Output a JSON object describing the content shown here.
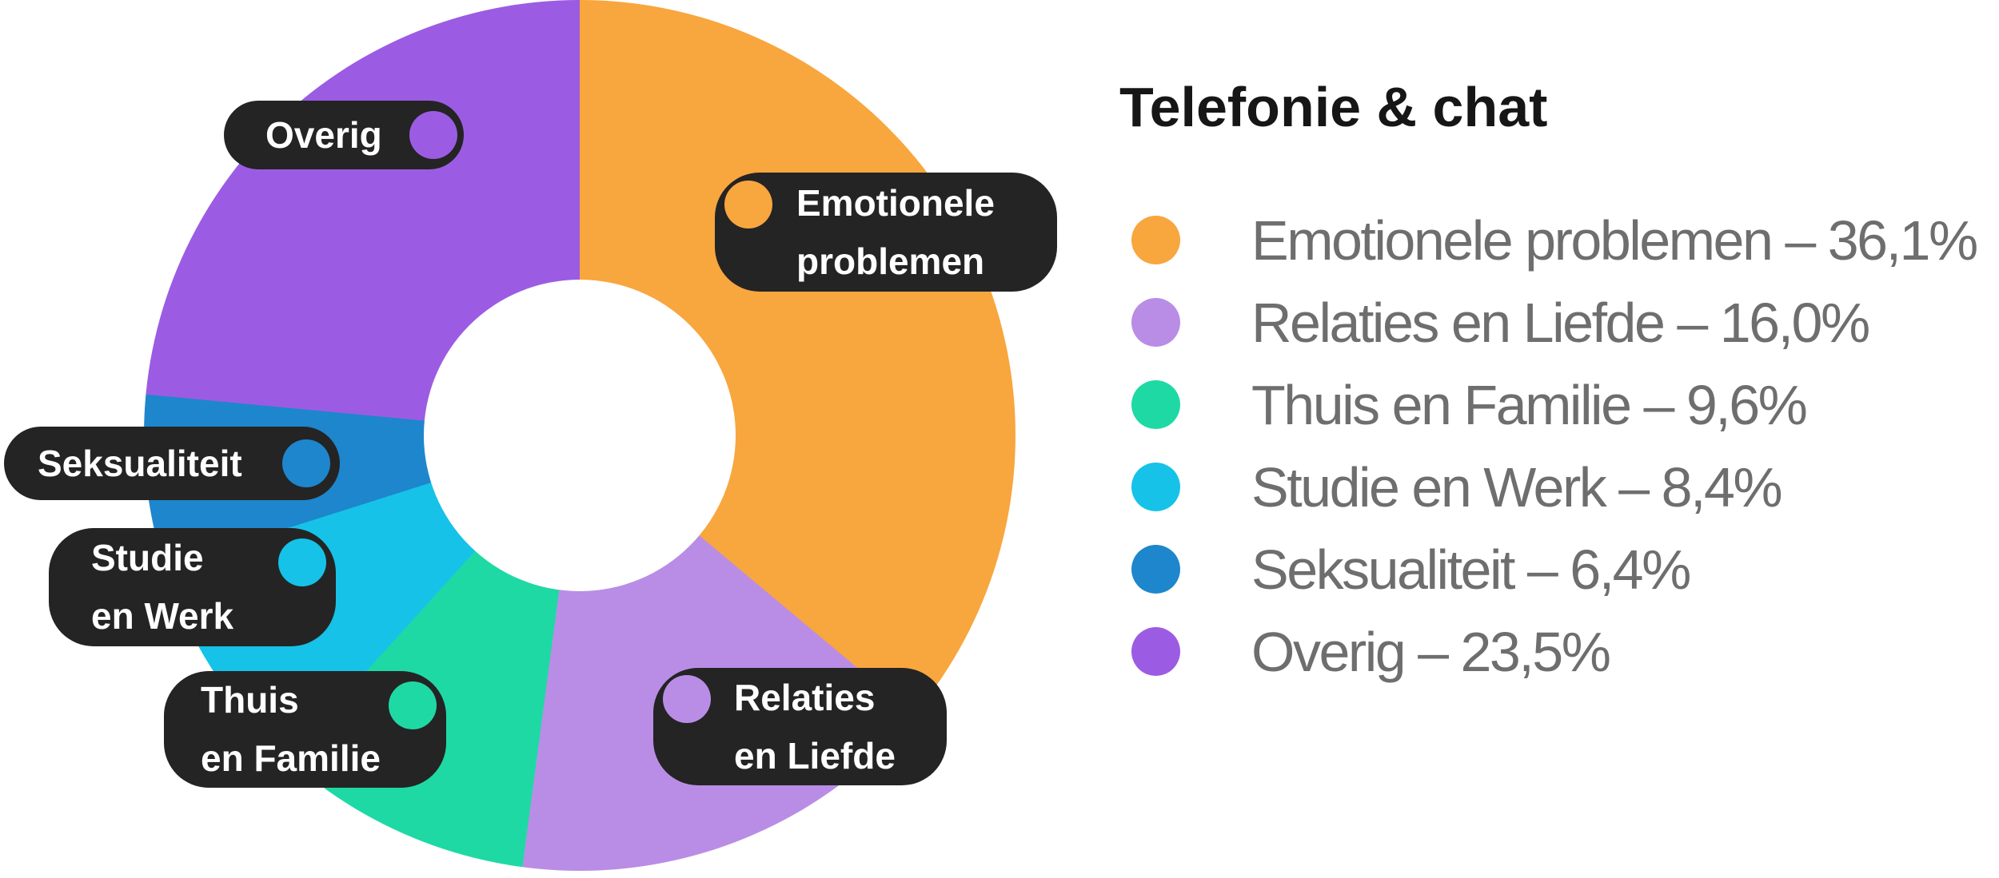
{
  "title": "Telefonie & chat",
  "colors": {
    "orange": "#F8A63E",
    "light_purple": "#B98DE6",
    "green": "#1FD9A4",
    "cyan": "#16C2E7",
    "blue": "#1E86CC",
    "purple": "#9B5CE3",
    "pill_background": "#242424",
    "pill_text": "#FFFFFF",
    "legend_text": "#6E6E6E",
    "title_text": "#161616",
    "background": "#FFFFFF"
  },
  "chart_data": {
    "type": "pie",
    "variant": "donut",
    "title": "Telefonie & chat",
    "categories": [
      "Emotionele problemen",
      "Relaties en Liefde",
      "Thuis en Familie",
      "Studie en Werk",
      "Seksualiteit",
      "Overig"
    ],
    "values": [
      36.1,
      16.0,
      9.6,
      8.4,
      6.4,
      23.5
    ],
    "value_display": [
      "36,1%",
      "16,0%",
      "9,6%",
      "8,4%",
      "6,4%",
      "23,5%"
    ],
    "colors": [
      "#F8A63E",
      "#B98DE6",
      "#1FD9A4",
      "#16C2E7",
      "#1E86CC",
      "#9B5CE3"
    ],
    "start_angle_deg": 0,
    "direction": "clockwise",
    "donut_hole_ratio": 0.36,
    "legend_position": "right",
    "grid": false
  },
  "legend": {
    "title": "Telefonie & chat",
    "items": [
      {
        "label": "Emotionele problemen",
        "value_display": "36,1%",
        "display": "Emotionele problemen – 36,1%",
        "color": "#F8A63E"
      },
      {
        "label": "Relaties en Liefde",
        "value_display": "16,0%",
        "display": "Relaties en Liefde – 16,0%",
        "color": "#B98DE6"
      },
      {
        "label": "Thuis en Familie",
        "value_display": "9,6%",
        "display": "Thuis en Familie – 9,6%",
        "color": "#1FD9A4"
      },
      {
        "label": "Studie en Werk",
        "value_display": "8,4%",
        "display": "Studie en Werk – 8,4%",
        "color": "#16C2E7"
      },
      {
        "label": "Seksualiteit",
        "value_display": "6,4%",
        "display": "Seksualiteit – 6,4%",
        "color": "#1E86CC"
      },
      {
        "label": "Overig",
        "value_display": "23,5%",
        "display": "Overig – 23,5%",
        "color": "#9B5CE3"
      }
    ]
  },
  "callouts": [
    {
      "id": "emotionele-problemen",
      "lines": [
        "Emotionele",
        "problemen"
      ],
      "color": "#F8A63E"
    },
    {
      "id": "relaties-en-liefde",
      "lines": [
        "Relaties",
        "en Liefde"
      ],
      "color": "#B98DE6"
    },
    {
      "id": "thuis-en-familie",
      "lines": [
        "Thuis",
        "en Familie"
      ],
      "color": "#1FD9A4"
    },
    {
      "id": "studie-en-werk",
      "lines": [
        "Studie",
        "en Werk"
      ],
      "color": "#16C2E7"
    },
    {
      "id": "seksualiteit",
      "lines": [
        "Seksualiteit"
      ],
      "color": "#1E86CC"
    },
    {
      "id": "overig",
      "lines": [
        "Overig"
      ],
      "color": "#9B5CE3"
    }
  ]
}
